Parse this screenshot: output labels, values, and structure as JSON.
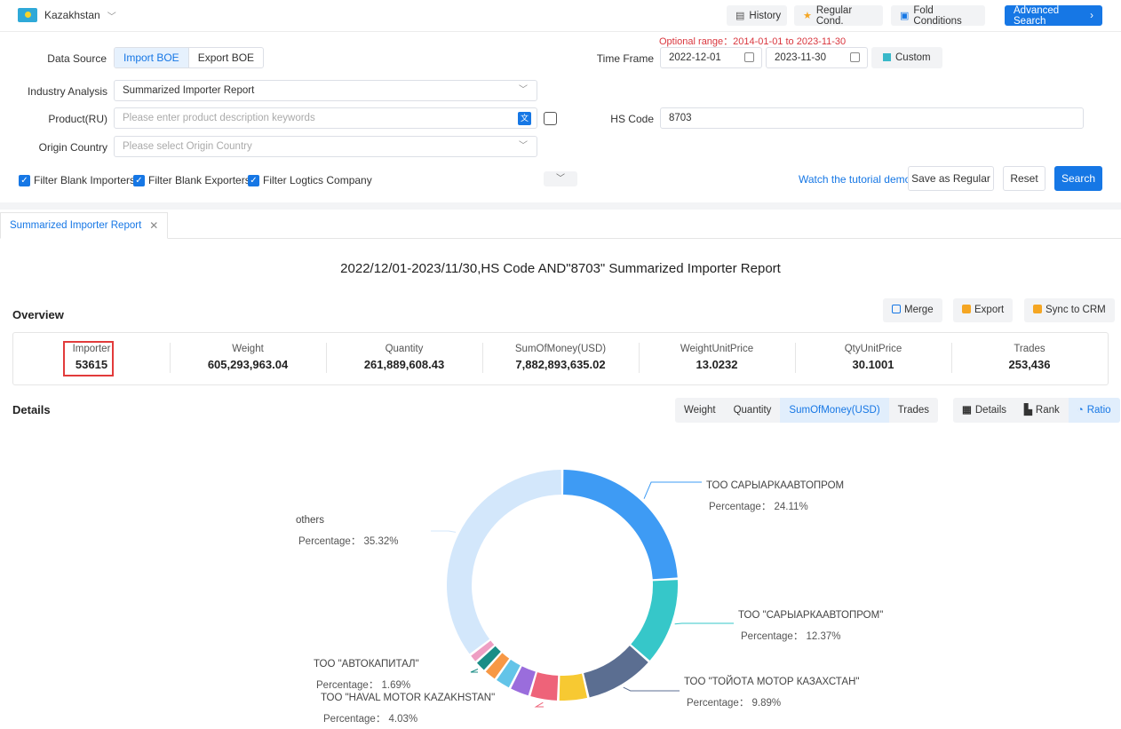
{
  "topbar": {
    "country": "Kazakhstan",
    "history": "History",
    "regular_cond": "Regular Cond.",
    "fold_conditions": "Fold Conditions",
    "advanced_search": "Advanced Search"
  },
  "filters": {
    "optional_range": "Optional range：2014-01-01 to 2023-11-30",
    "data_source_label": "Data Source",
    "import_boe": "Import BOE",
    "export_boe": "Export BOE",
    "time_frame_label": "Time Frame",
    "date_from": "2022-12-01",
    "date_to": "2023-11-30",
    "custom": "Custom",
    "industry_label": "Industry Analysis",
    "industry_value": "Summarized Importer Report",
    "product_label": "Product(RU)",
    "product_placeholder": "Please enter product description keywords",
    "hs_label": "HS Code",
    "hs_value": "8703",
    "origin_label": "Origin Country",
    "origin_placeholder": "Please select Origin Country",
    "filter_importers": "Filter Blank Importers",
    "filter_exporters": "Filter Blank Exporters",
    "filter_logistics": "Filter Logtics Company",
    "tutorial": "Watch the tutorial demo",
    "save_regular": "Save as Regular",
    "reset": "Reset",
    "search": "Search"
  },
  "report": {
    "tab": "Summarized Importer Report",
    "title": "2022/12/01-2023/11/30,HS Code AND\"8703\" Summarized Importer Report",
    "overview": "Overview",
    "merge": "Merge",
    "export": "Export",
    "sync_crm": "Sync to CRM",
    "stats": [
      {
        "k": "Importer",
        "v": "53615"
      },
      {
        "k": "Weight",
        "v": "605,293,963.04"
      },
      {
        "k": "Quantity",
        "v": "261,889,608.43"
      },
      {
        "k": "SumOfMoney(USD)",
        "v": "7,882,893,635.02"
      },
      {
        "k": "WeightUnitPrice",
        "v": "13.0232"
      },
      {
        "k": "QtyUnitPrice",
        "v": "30.1001"
      },
      {
        "k": "Trades",
        "v": "253,436"
      }
    ],
    "details": "Details",
    "metrics": [
      "Weight",
      "Quantity",
      "SumOfMoney(USD)",
      "Trades"
    ],
    "views": [
      "Details",
      "Rank",
      "Ratio"
    ]
  },
  "chart_data": {
    "type": "pie",
    "values_field": "SumOfMoney(USD)",
    "slices": [
      {
        "name": "ТОО САРЫАРКААВТОПРОМ",
        "percent": 24.11,
        "color": "#3e9bf4",
        "label": "Percentage： 24.11%"
      },
      {
        "name": "ТОО \"САРЫАРКААВТОПРОМ\"",
        "percent": 12.37,
        "color": "#36c7c9",
        "label": "Percentage： 12.37%"
      },
      {
        "name": "ТОО \"ТОЙОТА МОТОР КАЗАХСТАН\"",
        "percent": 9.89,
        "color": "#5b6e91",
        "label": "Percentage： 9.89%"
      },
      {
        "name": "",
        "percent": 4.2,
        "color": "#f7c932",
        "label": ""
      },
      {
        "name": "ТОО \"HAVAL MOTOR KAZAKHSTAN\"",
        "percent": 4.03,
        "color": "#ee6379",
        "label": "Percentage： 4.03%"
      },
      {
        "name": "",
        "percent": 2.9,
        "color": "#9a6ddc",
        "label": ""
      },
      {
        "name": "",
        "percent": 2.3,
        "color": "#63c4e8",
        "label": ""
      },
      {
        "name": "",
        "percent": 1.9,
        "color": "#f79845",
        "label": ""
      },
      {
        "name": "ТОО \"АВТОКАПИТАЛ\"",
        "percent": 1.69,
        "color": "#1a8d86",
        "label": "Percentage： 1.69%"
      },
      {
        "name": "",
        "percent": 1.29,
        "color": "#ee9ec3",
        "label": ""
      },
      {
        "name": "others",
        "percent": 35.32,
        "color": "#d3e7fb",
        "label": "Percentage： 35.32%"
      }
    ]
  }
}
